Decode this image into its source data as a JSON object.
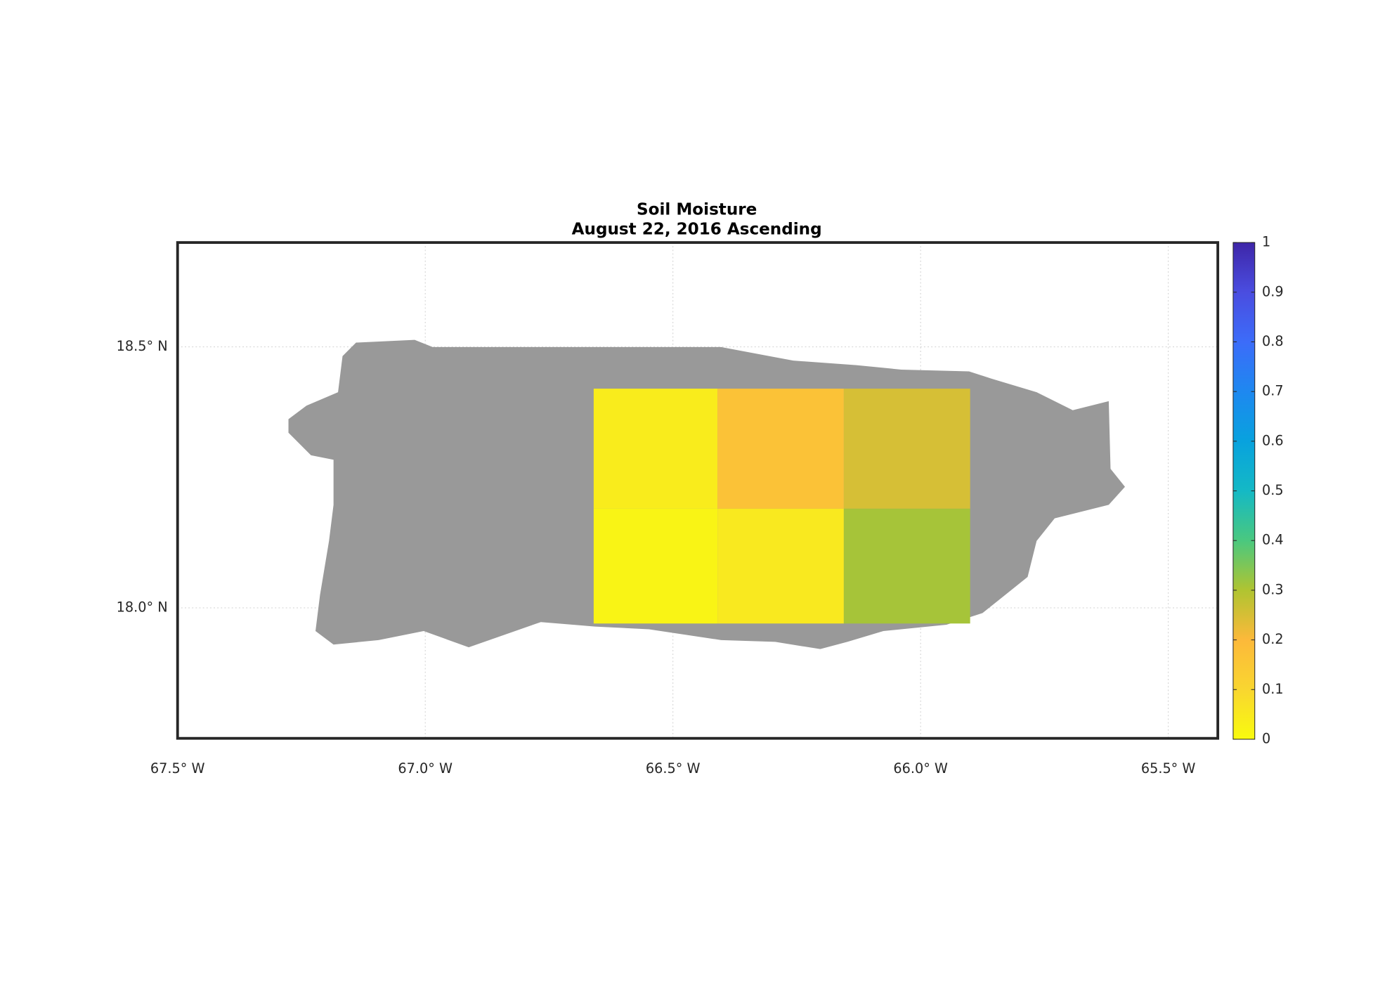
{
  "chart_data": {
    "type": "heatmap",
    "title": "Soil Moisture",
    "subtitle": "August 22, 2016 Ascending",
    "xlim": [
      -67.5,
      -65.4
    ],
    "ylim": [
      17.75,
      18.7
    ],
    "xticks": [
      {
        "value": -67.5,
        "label": "67.5° W"
      },
      {
        "value": -67.0,
        "label": "67.0° W"
      },
      {
        "value": -66.5,
        "label": "66.5° W"
      },
      {
        "value": -66.0,
        "label": "66.0° W"
      },
      {
        "value": -65.5,
        "label": "65.5° W"
      }
    ],
    "yticks": [
      {
        "value": 18.0,
        "label": "18.0° N"
      },
      {
        "value": 18.5,
        "label": "18.5° N"
      }
    ],
    "grid": true,
    "land_color": "#999999",
    "cells": [
      {
        "lon": [
          -66.66,
          -66.41
        ],
        "lat": [
          18.19,
          18.42
        ],
        "value": 0.04
      },
      {
        "lon": [
          -66.41,
          -66.155
        ],
        "lat": [
          18.19,
          18.42
        ],
        "value": 0.17
      },
      {
        "lon": [
          -66.155,
          -65.9
        ],
        "lat": [
          18.19,
          18.42
        ],
        "value": 0.25
      },
      {
        "lon": [
          -66.66,
          -66.41
        ],
        "lat": [
          17.97,
          18.19
        ],
        "value": 0.02
      },
      {
        "lon": [
          -66.41,
          -66.155
        ],
        "lat": [
          17.97,
          18.19
        ],
        "value": 0.05
      },
      {
        "lon": [
          -66.155,
          -65.9
        ],
        "lat": [
          17.97,
          18.19
        ],
        "value": 0.31
      }
    ],
    "clim": [
      0,
      1
    ],
    "cticks": [
      0,
      0.1,
      0.2,
      0.3,
      0.4,
      0.5,
      0.6,
      0.7,
      0.8,
      0.9,
      1
    ],
    "colormap": [
      "#f9fb0e",
      "#f9d630",
      "#fcb93a",
      "#b0c431",
      "#4ac87f",
      "#14b9c5",
      "#08a2de",
      "#1e88f0",
      "#3c6cf9",
      "#4a4de0",
      "#3e26a8"
    ]
  }
}
